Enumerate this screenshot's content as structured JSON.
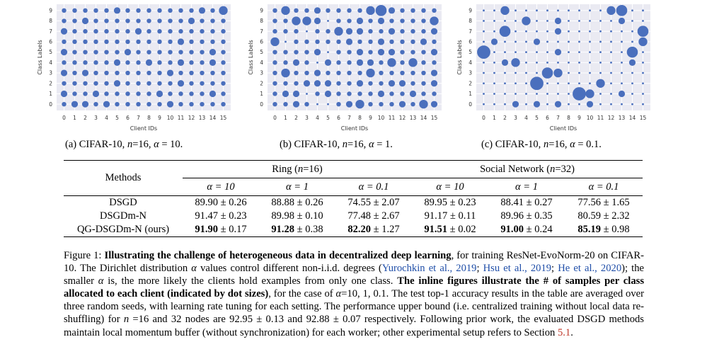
{
  "panels": [
    {
      "id": "a",
      "caption_prefix": "(a) CIFAR-10, ",
      "caption_n": "n",
      "caption_mid": "=16, ",
      "caption_alpha": "α",
      "caption_suffix": " = 10.",
      "alpha": "10"
    },
    {
      "id": "b",
      "caption_prefix": "(b) CIFAR-10, ",
      "caption_n": "n",
      "caption_mid": "=16, ",
      "caption_alpha": "α",
      "caption_suffix": " = 1.",
      "alpha": "1"
    },
    {
      "id": "c",
      "caption_prefix": "(c) CIFAR-10, ",
      "caption_n": "n",
      "caption_mid": "=16, ",
      "caption_alpha": "α",
      "caption_suffix": " = 0.1.",
      "alpha": "0.1"
    }
  ],
  "chart_data": [
    {
      "type": "scatter",
      "title": "",
      "xlabel": "Client IDs",
      "ylabel": "Class Labels",
      "x_ticks": [
        "0",
        "1",
        "2",
        "3",
        "4",
        "5",
        "6",
        "7",
        "8",
        "9",
        "10",
        "11",
        "12",
        "13",
        "14",
        "15"
      ],
      "y_ticks": [
        "0",
        "1",
        "2",
        "3",
        "4",
        "5",
        "6",
        "7",
        "8",
        "9"
      ],
      "dot_color": "#4a6fbd",
      "grid_background": "#eaeaf2",
      "note": "dot size ~ number of samples of class label per client (relative)",
      "sizes": [
        [
          2,
          3,
          3,
          2,
          3,
          2,
          2,
          2,
          2,
          2,
          3,
          2,
          2,
          2,
          2,
          2
        ],
        [
          3,
          2,
          2,
          3,
          2,
          2,
          2,
          2,
          2,
          3,
          2,
          2,
          2,
          2,
          3,
          2
        ],
        [
          2,
          2,
          2,
          2,
          2,
          3,
          2,
          2,
          2,
          2,
          2,
          3,
          2,
          2,
          2,
          2
        ],
        [
          3,
          2,
          3,
          2,
          2,
          2,
          2,
          2,
          2,
          2,
          3,
          2,
          2,
          2,
          2,
          2
        ],
        [
          2,
          2,
          2,
          2,
          2,
          3,
          2,
          2,
          3,
          2,
          2,
          3,
          2,
          2,
          3,
          2
        ],
        [
          3,
          2,
          2,
          2,
          2,
          2,
          3,
          2,
          2,
          2,
          2,
          2,
          2,
          2,
          3,
          2
        ],
        [
          2,
          2,
          2,
          2,
          2,
          2,
          2,
          2,
          2,
          2,
          2,
          3,
          2,
          2,
          2,
          2
        ],
        [
          3,
          2,
          2,
          2,
          2,
          2,
          2,
          3,
          2,
          2,
          2,
          2,
          2,
          2,
          2,
          2
        ],
        [
          2,
          2,
          3,
          2,
          2,
          2,
          2,
          2,
          2,
          2,
          2,
          2,
          3,
          2,
          2,
          2
        ],
        [
          2,
          2,
          2,
          2,
          2,
          3,
          2,
          2,
          2,
          2,
          2,
          2,
          2,
          3,
          2,
          4
        ]
      ]
    },
    {
      "type": "scatter",
      "title": "",
      "xlabel": "Client IDs",
      "ylabel": "Class Labels",
      "x_ticks": [
        "0",
        "1",
        "2",
        "3",
        "4",
        "5",
        "6",
        "7",
        "8",
        "9",
        "10",
        "11",
        "12",
        "13",
        "14",
        "15"
      ],
      "y_ticks": [
        "0",
        "1",
        "2",
        "3",
        "4",
        "5",
        "6",
        "7",
        "8",
        "9"
      ],
      "dot_color": "#4a6fbd",
      "grid_background": "#eaeaf2",
      "note": "dot size ~ number of samples of class label per client (relative)",
      "sizes": [
        [
          2,
          2,
          3,
          2,
          1,
          1,
          2,
          3,
          4,
          2,
          2,
          2,
          3,
          2,
          4,
          3
        ],
        [
          2,
          3,
          3,
          1,
          2,
          3,
          2,
          2,
          2,
          2,
          3,
          2,
          2,
          3,
          2,
          2
        ],
        [
          2,
          2,
          2,
          3,
          3,
          3,
          2,
          2,
          3,
          2,
          2,
          3,
          3,
          2,
          2,
          3
        ],
        [
          2,
          4,
          2,
          2,
          3,
          2,
          2,
          2,
          2,
          4,
          2,
          2,
          2,
          2,
          2,
          3
        ],
        [
          2,
          2,
          3,
          2,
          1,
          3,
          2,
          2,
          3,
          3,
          2,
          4,
          2,
          4,
          2,
          2
        ],
        [
          2,
          2,
          2,
          2,
          3,
          1,
          2,
          2,
          3,
          2,
          3,
          3,
          2,
          2,
          2,
          3
        ],
        [
          4,
          1,
          2,
          2,
          2,
          2,
          2,
          3,
          2,
          2,
          3,
          2,
          2,
          2,
          3,
          2
        ],
        [
          2,
          2,
          2,
          1,
          2,
          2,
          4,
          3,
          3,
          2,
          2,
          3,
          2,
          2,
          2,
          3
        ],
        [
          2,
          2,
          4,
          4,
          3,
          1,
          2,
          2,
          3,
          2,
          3,
          2,
          2,
          2,
          2,
          4
        ],
        [
          2,
          4,
          2,
          2,
          3,
          2,
          2,
          2,
          2,
          4,
          5,
          3,
          2,
          2,
          2,
          2
        ]
      ]
    },
    {
      "type": "scatter",
      "title": "",
      "xlabel": "Client IDs",
      "ylabel": "Class Labels",
      "x_ticks": [
        "0",
        "1",
        "2",
        "3",
        "4",
        "5",
        "6",
        "7",
        "8",
        "9",
        "10",
        "11",
        "12",
        "13",
        "14",
        "15"
      ],
      "y_ticks": [
        "0",
        "1",
        "2",
        "3",
        "4",
        "5",
        "6",
        "7",
        "8",
        "9"
      ],
      "dot_color": "#4a6fbd",
      "grid_background": "#eaeaf2",
      "note": "dot size ~ number of samples of class label per client (relative)",
      "sizes": [
        [
          1,
          1,
          1,
          3,
          1,
          3,
          1,
          3,
          1,
          1,
          3,
          1,
          1,
          1,
          1,
          1
        ],
        [
          1,
          1,
          1,
          1,
          1,
          1,
          1,
          1,
          1,
          6,
          4,
          1,
          1,
          3,
          1,
          1
        ],
        [
          1,
          1,
          1,
          1,
          1,
          6,
          1,
          1,
          1,
          1,
          1,
          4,
          1,
          1,
          1,
          1
        ],
        [
          1,
          1,
          1,
          1,
          1,
          1,
          5,
          4,
          1,
          1,
          1,
          1,
          1,
          1,
          1,
          1
        ],
        [
          1,
          1,
          3,
          4,
          1,
          1,
          1,
          1,
          1,
          1,
          1,
          1,
          1,
          1,
          3,
          1
        ],
        [
          6,
          1,
          1,
          1,
          1,
          1,
          1,
          3,
          1,
          1,
          1,
          1,
          1,
          1,
          5,
          1
        ],
        [
          1,
          3,
          1,
          1,
          1,
          3,
          1,
          1,
          1,
          1,
          1,
          1,
          1,
          1,
          1,
          4
        ],
        [
          1,
          1,
          5,
          1,
          1,
          1,
          1,
          3,
          1,
          1,
          1,
          1,
          1,
          1,
          1,
          5
        ],
        [
          1,
          1,
          1,
          1,
          4,
          1,
          1,
          3,
          1,
          1,
          1,
          1,
          1,
          3,
          1,
          1
        ],
        [
          1,
          1,
          4,
          1,
          1,
          1,
          1,
          1,
          1,
          1,
          1,
          1,
          4,
          5,
          1,
          1
        ]
      ]
    }
  ],
  "table": {
    "methods_header": "Methods",
    "ring_header_pre": "Ring (",
    "ring_header_n": "n",
    "ring_header_post": "=16)",
    "social_header_pre": "Social Network (",
    "social_header_n": "n",
    "social_header_post": "=32)",
    "alpha_headers": [
      "α = 10",
      "α = 1",
      "α = 0.1",
      "α = 10",
      "α = 1",
      "α = 0.1"
    ],
    "rows": [
      {
        "method": "DSGD",
        "cells": [
          {
            "mean": "89.90",
            "std": " ± 0.26",
            "bold": false
          },
          {
            "mean": "88.88",
            "std": " ± 0.26",
            "bold": false
          },
          {
            "mean": "74.55",
            "std": " ± 2.07",
            "bold": false
          },
          {
            "mean": "89.95",
            "std": " ± 0.23",
            "bold": false
          },
          {
            "mean": "88.41",
            "std": " ± 0.27",
            "bold": false
          },
          {
            "mean": "77.56",
            "std": " ± 1.65",
            "bold": false
          }
        ]
      },
      {
        "method": "DSGDm-N",
        "cells": [
          {
            "mean": "91.47",
            "std": " ± 0.23",
            "bold": false
          },
          {
            "mean": "89.98",
            "std": " ± 0.10",
            "bold": false
          },
          {
            "mean": "77.48",
            "std": " ± 2.67",
            "bold": false
          },
          {
            "mean": "91.17",
            "std": " ± 0.11",
            "bold": false
          },
          {
            "mean": "89.96",
            "std": " ± 0.35",
            "bold": false
          },
          {
            "mean": "80.59",
            "std": " ± 2.32",
            "bold": false
          }
        ]
      },
      {
        "method": "QG-DSGDm-N (ours)",
        "cells": [
          {
            "mean": "91.90",
            "std": " ± 0.17",
            "bold": true
          },
          {
            "mean": "91.28",
            "std": " ± 0.38",
            "bold": true
          },
          {
            "mean": "82.20",
            "std": " ± 1.27",
            "bold": true
          },
          {
            "mean": "91.51",
            "std": " ± 0.02",
            "bold": true
          },
          {
            "mean": "91.00",
            "std": " ± 0.24",
            "bold": true
          },
          {
            "mean": "85.19",
            "std": " ± 0.98",
            "bold": true
          }
        ]
      }
    ]
  },
  "caption": {
    "label": "Figure 1: ",
    "bold_title": "Illustrating the challenge of heterogeneous data in decentralized deep learning",
    "t1": ", for training ResNet-EvoNorm-20 on CIFAR-10. The Dirichlet distribution ",
    "alpha1": "α",
    "t2": " values control different non-i.i.d. degrees (",
    "cite1": "Yurochkin et al., 2019",
    "sep1": "; ",
    "cite2": "Hsu et al., 2019",
    "sep2": "; ",
    "cite3": "He et al., 2020",
    "t3": "); the smaller ",
    "alpha2": "α",
    "t4": " is, the more likely the clients hold examples from only one class. ",
    "bold2": "The inline figures illustrate the # of samples per class allocated to each client (indicated by dot sizes)",
    "t5": ", for the case of ",
    "alpha3": "α",
    "t6": "=10, 1, 0.1. The test top-1 accuracy results in the table are averaged over three random seeds, with learning rate tuning for each setting. The performance upper bound (i.e. centralized training without local data re-shuffling) for ",
    "n1": "n",
    "t7": " =16 and 32 nodes are 92.95 ± 0.13 and 92.88 ± 0.07 respectively. Following prior work, the evaluated DSGD methods maintain local momentum buffer (without synchronization) for each worker; other experimental setup refers to Section ",
    "secref": "5.1",
    "t8": "."
  }
}
